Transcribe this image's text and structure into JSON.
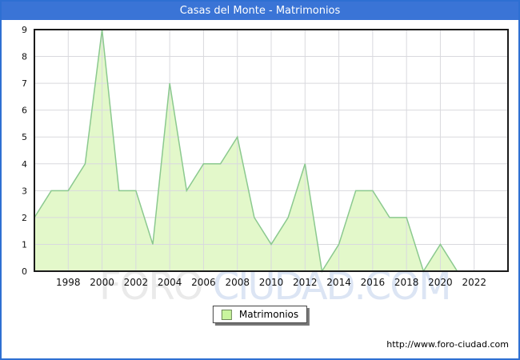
{
  "header": {
    "title": "Casas del Monte - Matrimonios",
    "bar_color": "#3a74d6",
    "text_color": "#ffffff"
  },
  "chart_data": {
    "type": "area",
    "title": "Casas del Monte - Matrimonios",
    "xlabel": "",
    "ylabel": "",
    "years": [
      1996,
      1997,
      1998,
      1999,
      2000,
      2001,
      2002,
      2003,
      2004,
      2005,
      2006,
      2007,
      2008,
      2009,
      2010,
      2011,
      2012,
      2013,
      2014,
      2015,
      2016,
      2017,
      2018,
      2019,
      2020,
      2021,
      2022,
      2023
    ],
    "series": [
      {
        "name": "Matrimonios",
        "values": [
          2,
          3,
          3,
          4,
          9,
          3,
          3,
          1,
          7,
          3,
          4,
          4,
          5,
          2,
          1,
          2,
          4,
          0,
          1,
          3,
          3,
          2,
          2,
          0,
          1,
          0,
          0,
          0
        ]
      }
    ],
    "xlim": [
      1996,
      2024
    ],
    "ylim": [
      0,
      9
    ],
    "y_ticks": [
      0,
      1,
      2,
      3,
      4,
      5,
      6,
      7,
      8,
      9
    ],
    "x_tick_years": [
      1998,
      2000,
      2002,
      2004,
      2006,
      2008,
      2010,
      2012,
      2014,
      2016,
      2018,
      2020,
      2022
    ],
    "grid": true,
    "legend_position": "bottom-center",
    "colors": {
      "fill": "#e3f8ca",
      "line": "#8bc98f",
      "grid": "#d9d9de",
      "axis": "#1a1a1a"
    }
  },
  "legend": {
    "label": "Matrimonios",
    "swatch_fill": "#c9f59e",
    "swatch_border": "#70885c"
  },
  "watermark": {
    "part1": "FORO",
    "part2": " CIUDAD.COM"
  },
  "footer": {
    "url": "http://www.foro-ciudad.com"
  }
}
